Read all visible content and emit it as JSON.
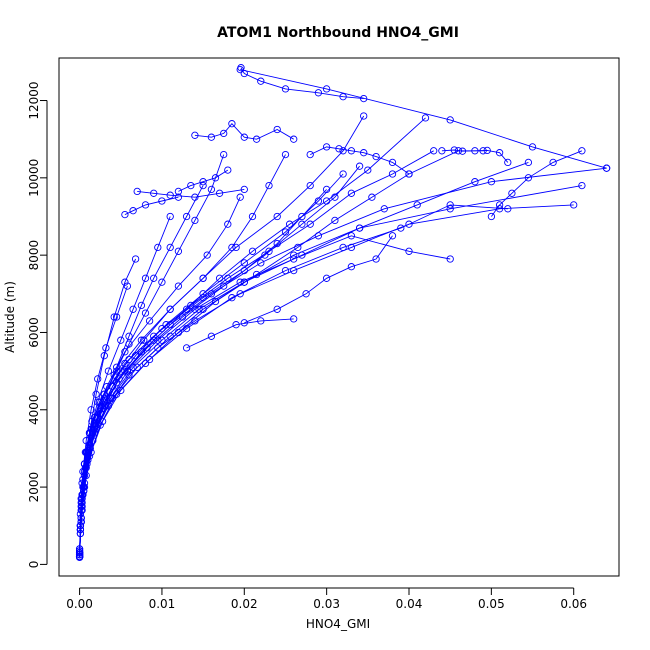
{
  "chart_data": {
    "type": "scatter",
    "title": "ATOM1 Northbound HNO4_GMI",
    "xlabel": "HNO4_GMI",
    "ylabel": "Altitude (m)",
    "xlim": [
      -0.0025,
      0.0655
    ],
    "ylim": [
      -300,
      13100
    ],
    "x_ticks": [
      "0.00",
      "0.01",
      "0.02",
      "0.03",
      "0.04",
      "0.05",
      "0.06"
    ],
    "x_tick_values": [
      0,
      0.01,
      0.02,
      0.03,
      0.04,
      0.05,
      0.06
    ],
    "y_ticks": [
      "0",
      "2000",
      "4000",
      "6000",
      "8000",
      "10000",
      "12000"
    ],
    "y_tick_values": [
      0,
      2000,
      4000,
      6000,
      8000,
      10000,
      12000
    ],
    "grid": false,
    "series_color": "#0000ff",
    "series": [
      {
        "x": [
          0.0,
          0.0001,
          0.0002,
          0.0004,
          0.0008,
          0.0015,
          0.003,
          0.0055,
          0.009,
          0.013,
          0.017,
          0.021,
          0.0255,
          0.03,
          0.035,
          0.042
        ],
        "y": [
          200,
          900,
          1500,
          2200,
          2900,
          3500,
          4200,
          5000,
          5800,
          6600,
          7400,
          8100,
          8800,
          9400,
          10200,
          11550
        ]
      },
      {
        "x": [
          0.0,
          0.0001,
          0.0003,
          0.0006,
          0.0012,
          0.0025,
          0.0045,
          0.0075,
          0.011,
          0.016,
          0.022,
          0.029,
          0.037,
          0.05,
          0.064
        ],
        "y": [
          180,
          800,
          1500,
          2300,
          3100,
          3900,
          4700,
          5500,
          6200,
          7000,
          7800,
          8500,
          9200,
          9900,
          10250
        ]
      },
      {
        "x": [
          0.0,
          0.0002,
          0.0005,
          0.001,
          0.002,
          0.004,
          0.007,
          0.011,
          0.015,
          0.02,
          0.026,
          0.034,
          0.045,
          0.061
        ],
        "y": [
          300,
          1200,
          2000,
          2800,
          3600,
          4300,
          5100,
          5900,
          6600,
          7300,
          8000,
          8700,
          9200,
          9800
        ]
      },
      {
        "x": [
          0.0,
          0.0001,
          0.0004,
          0.0009,
          0.0018,
          0.0035,
          0.006,
          0.0095,
          0.014,
          0.0195,
          0.026,
          0.033,
          0.04,
          0.051,
          0.06
        ],
        "y": [
          250,
          1000,
          1800,
          2600,
          3400,
          4100,
          4900,
          5600,
          6300,
          7000,
          7600,
          8200,
          8800,
          9200,
          9300
        ]
      },
      {
        "x": [
          0.0,
          0.0002,
          0.0006,
          0.0014,
          0.0028,
          0.005,
          0.0085,
          0.013,
          0.0185,
          0.025,
          0.032,
          0.039,
          0.045,
          0.052
        ],
        "y": [
          200,
          1100,
          2000,
          2900,
          3700,
          4500,
          5300,
          6100,
          6900,
          7600,
          8200,
          8700,
          9300,
          9200
        ]
      },
      {
        "x": [
          0.0,
          0.0001,
          0.0003,
          0.0007,
          0.0015,
          0.003,
          0.0055,
          0.009,
          0.0135,
          0.018,
          0.023,
          0.028,
          0.033,
          0.038,
          0.043
        ],
        "y": [
          350,
          1300,
          2100,
          2900,
          3700,
          4400,
          5200,
          5900,
          6700,
          7400,
          8100,
          8800,
          9600,
          10100,
          10700
        ]
      },
      {
        "x": [
          0.0,
          0.0002,
          0.0005,
          0.0012,
          0.0025,
          0.0045,
          0.008,
          0.012,
          0.0165,
          0.0215,
          0.0265,
          0.031,
          0.0355,
          0.04,
          0.046,
          0.049
        ],
        "y": [
          300,
          1100,
          1900,
          2800,
          3600,
          4400,
          5200,
          6000,
          6800,
          7500,
          8200,
          8900,
          9500,
          10100,
          10700,
          10700
        ]
      },
      {
        "x": [
          0.0,
          0.0001,
          0.0004,
          0.001,
          0.002,
          0.0038,
          0.0065,
          0.01,
          0.0145,
          0.02,
          0.027,
          0.034,
          0.041,
          0.048,
          0.0545
        ],
        "y": [
          250,
          1000,
          1800,
          2700,
          3500,
          4300,
          5100,
          5800,
          6600,
          7300,
          8000,
          8700,
          9300,
          9900,
          10400
        ]
      },
      {
        "x": [
          0.0,
          0.0003,
          0.0008,
          0.0016,
          0.0032,
          0.0058,
          0.0095,
          0.014,
          0.0195,
          0.026,
          0.033,
          0.04,
          0.045
        ],
        "y": [
          400,
          1400,
          2300,
          3200,
          4100,
          5000,
          5800,
          6600,
          7300,
          7900,
          8500,
          8100,
          7900
        ]
      },
      {
        "x": [
          0.0,
          0.0001,
          0.0002,
          0.0006,
          0.0014,
          0.003,
          0.006,
          0.01,
          0.015,
          0.02,
          0.024,
          0.027,
          0.03
        ],
        "y": [
          200,
          900,
          1700,
          2600,
          3500,
          4400,
          5300,
          6100,
          6900,
          7600,
          8300,
          9000,
          9700
        ]
      },
      {
        "x": [
          0.0,
          0.0002,
          0.0006,
          0.0013,
          0.0026,
          0.0048,
          0.0082,
          0.0125,
          0.0175,
          0.0225,
          0.027,
          0.031,
          0.034
        ],
        "y": [
          300,
          1200,
          2100,
          3000,
          3900,
          4800,
          5600,
          6400,
          7200,
          8000,
          8800,
          9500,
          10300
        ]
      },
      {
        "x": [
          0.0,
          0.0001,
          0.0003,
          0.0008,
          0.0016,
          0.003,
          0.005,
          0.0078,
          0.011,
          0.015,
          0.019,
          0.024,
          0.028,
          0.032,
          0.0345
        ],
        "y": [
          200,
          800,
          1600,
          2500,
          3400,
          4200,
          5000,
          5800,
          6600,
          7400,
          8200,
          9000,
          9800,
          10700,
          11600
        ]
      },
      {
        "x": [
          0.0,
          0.0002,
          0.0005,
          0.0011,
          0.0022,
          0.004,
          0.0068,
          0.0105,
          0.015,
          0.02,
          0.025,
          0.029,
          0.032
        ],
        "y": [
          250,
          1100,
          2000,
          2900,
          3800,
          4600,
          5400,
          6200,
          7000,
          7800,
          8600,
          9400,
          10100
        ]
      },
      {
        "x": [
          0.0,
          0.0001,
          0.0003,
          0.0006,
          0.0012,
          0.0024,
          0.0045,
          0.0075,
          0.011,
          0.015,
          0.0185,
          0.021,
          0.023,
          0.025
        ],
        "y": [
          300,
          1000,
          1800,
          2600,
          3400,
          4200,
          5000,
          5800,
          6600,
          7400,
          8200,
          9000,
          9800,
          10600
        ]
      },
      {
        "x": [
          0.0,
          0.0002,
          0.0004,
          0.0009,
          0.0018,
          0.0033,
          0.0055,
          0.0085,
          0.012,
          0.0155,
          0.018,
          0.0195
        ],
        "y": [
          350,
          1200,
          2000,
          2900,
          3800,
          4600,
          5500,
          6300,
          7200,
          8000,
          8800,
          9500
        ]
      },
      {
        "x": [
          0.0,
          0.0001,
          0.0003,
          0.0007,
          0.0014,
          0.0026,
          0.0042,
          0.006,
          0.008,
          0.01,
          0.012,
          0.014,
          0.016,
          0.0175
        ],
        "y": [
          200,
          900,
          1700,
          2500,
          3300,
          4100,
          4900,
          5700,
          6500,
          7300,
          8100,
          8900,
          9700,
          10600
        ]
      },
      {
        "x": [
          0.0,
          0.0002,
          0.0005,
          0.001,
          0.0018,
          0.003,
          0.0045,
          0.006,
          0.0075,
          0.009,
          0.011,
          0.013,
          0.015
        ],
        "y": [
          300,
          1100,
          1900,
          2700,
          3500,
          4300,
          5100,
          5900,
          6700,
          7400,
          8200,
          9000,
          9800
        ]
      },
      {
        "x": [
          0.0,
          0.0001,
          0.0003,
          0.0006,
          0.0012,
          0.0022,
          0.0035,
          0.005,
          0.0065,
          0.008,
          0.0095,
          0.011
        ],
        "y": [
          250,
          1000,
          1800,
          2600,
          3400,
          4200,
          5000,
          5800,
          6600,
          7400,
          8200,
          9000
        ]
      },
      {
        "x": [
          0.0,
          0.0002,
          0.0006,
          0.0012,
          0.002,
          0.003,
          0.0042,
          0.0055,
          0.0068
        ],
        "y": [
          400,
          1400,
          2400,
          3400,
          4400,
          5400,
          6400,
          7300,
          7900
        ]
      },
      {
        "x": [
          0.0,
          0.0001,
          0.0002,
          0.0004,
          0.0008,
          0.0014,
          0.0022,
          0.0032,
          0.0045,
          0.0058
        ],
        "y": [
          200,
          900,
          1600,
          2400,
          3200,
          4000,
          4800,
          5600,
          6400,
          7200
        ]
      },
      {
        "x": [
          0.0196,
          0.02,
          0.022,
          0.025,
          0.029,
          0.032,
          0.0345
        ],
        "y": [
          12850,
          12700,
          12500,
          12300,
          12200,
          12100,
          12050
        ]
      },
      {
        "x": [
          0.0195,
          0.03,
          0.045,
          0.055,
          0.064
        ],
        "y": [
          12800,
          12300,
          11500,
          10800,
          10250
        ]
      },
      {
        "x": [
          0.014,
          0.016,
          0.0175,
          0.0185,
          0.02,
          0.0215,
          0.024,
          0.026
        ],
        "y": [
          11100,
          11050,
          11150,
          11400,
          11050,
          11000,
          11250,
          11000
        ]
      },
      {
        "x": [
          0.028,
          0.03,
          0.0315,
          0.033,
          0.0345,
          0.036,
          0.038,
          0.04
        ],
        "y": [
          10600,
          10800,
          10750,
          10700,
          10650,
          10550,
          10400,
          10100
        ]
      },
      {
        "x": [
          0.044,
          0.0455,
          0.0465,
          0.048,
          0.0495,
          0.051,
          0.052
        ],
        "y": [
          10700,
          10720,
          10690,
          10700,
          10710,
          10650,
          10400
        ]
      },
      {
        "x": [
          0.012,
          0.0135,
          0.015,
          0.0165,
          0.018
        ],
        "y": [
          9650,
          9800,
          9900,
          10000,
          10200
        ]
      },
      {
        "x": [
          0.007,
          0.009,
          0.011,
          0.014,
          0.017,
          0.02
        ],
        "y": [
          9650,
          9600,
          9550,
          9500,
          9600,
          9700
        ]
      },
      {
        "x": [
          0.0055,
          0.0065,
          0.008,
          0.01,
          0.012
        ],
        "y": [
          9050,
          9150,
          9300,
          9400,
          9500
        ]
      },
      {
        "x": [
          0.02,
          0.024,
          0.0275,
          0.03,
          0.033,
          0.036,
          0.038
        ],
        "y": [
          6250,
          6600,
          7000,
          7400,
          7700,
          7900,
          8500
        ]
      },
      {
        "x": [
          0.013,
          0.016,
          0.019,
          0.022,
          0.026
        ],
        "y": [
          5600,
          5900,
          6200,
          6300,
          6350
        ]
      },
      {
        "x": [
          0.05,
          0.051,
          0.0525,
          0.0545,
          0.0575,
          0.061
        ],
        "y": [
          9000,
          9300,
          9600,
          10000,
          10400,
          10700
        ]
      }
    ]
  }
}
